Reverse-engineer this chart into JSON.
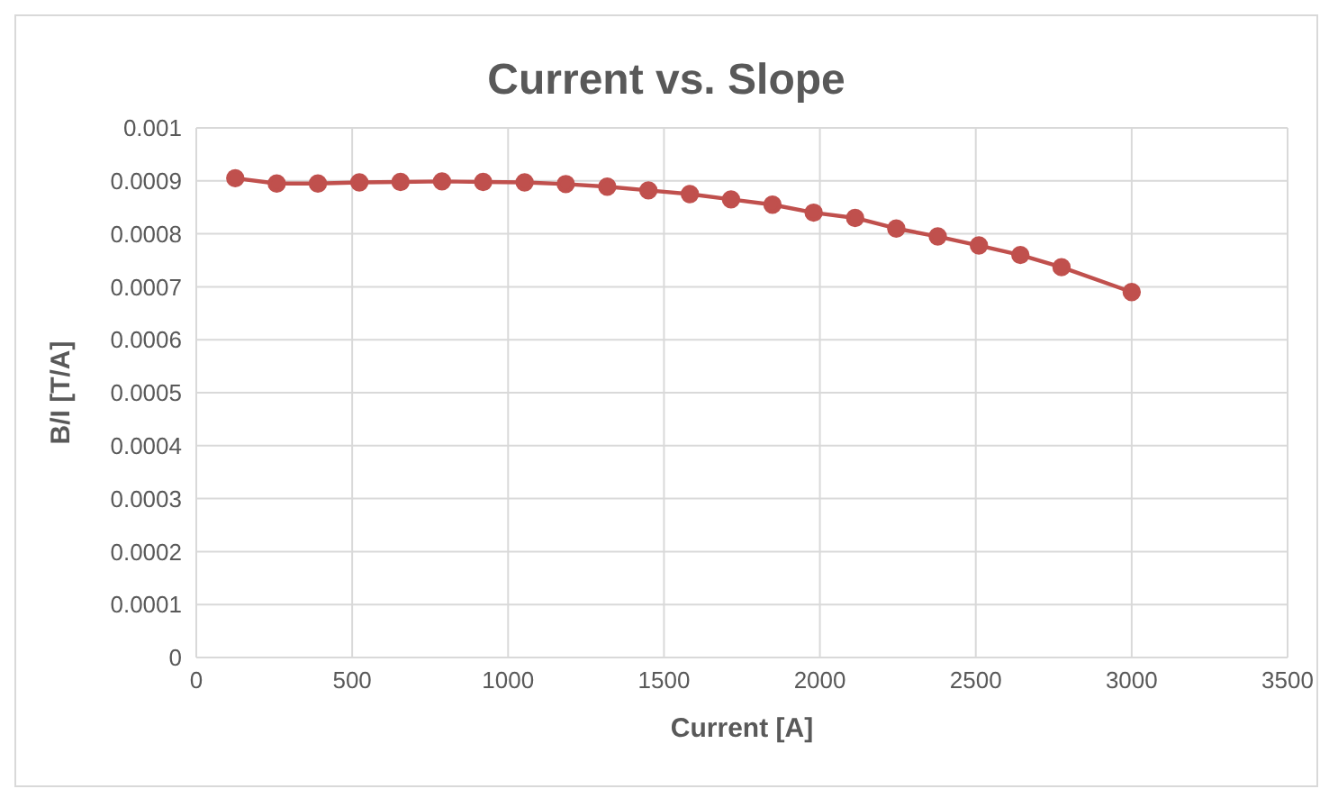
{
  "chart_data": {
    "type": "line",
    "title": "Current vs. Slope",
    "xlabel": "Current [A]",
    "ylabel": "B/I [T/A]",
    "x": [
      125,
      258,
      390,
      523,
      655,
      788,
      920,
      1053,
      1185,
      1318,
      1450,
      1583,
      1715,
      1848,
      1980,
      2113,
      2245,
      2378,
      2510,
      2643,
      2775,
      3000
    ],
    "series": [
      {
        "color": "#c0504d",
        "values": [
          0.000905,
          0.000895,
          0.000895,
          0.000897,
          0.000898,
          0.000899,
          0.000898,
          0.000897,
          0.000894,
          0.000889,
          0.000882,
          0.000875,
          0.000865,
          0.000855,
          0.00084,
          0.00083,
          0.00081,
          0.000795,
          0.000778,
          0.00076,
          0.000737,
          0.00069
        ]
      }
    ],
    "xlim": [
      0,
      3500
    ],
    "xticks": [
      0,
      500,
      1000,
      1500,
      2000,
      2500,
      3000,
      3500
    ],
    "ylim": [
      0,
      0.001
    ],
    "yticks": [
      0,
      0.0001,
      0.0002,
      0.0003,
      0.0004,
      0.0005,
      0.0006,
      0.0007,
      0.0008,
      0.0009,
      0.001
    ],
    "grid": true,
    "marker": "circle",
    "line_style": "solid",
    "legend": false
  }
}
